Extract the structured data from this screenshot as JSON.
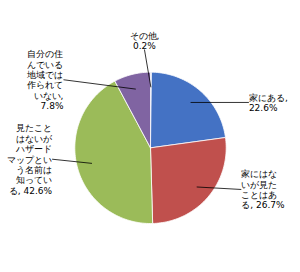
{
  "chart_data": {
    "type": "pie",
    "values": [
      0.2,
      22.6,
      26.7,
      42.6,
      7.8
    ],
    "value_labels": [
      "その他,\n0.2%",
      "家にある,\n22.6%",
      "家にはな\nいが見た\nことはあ\nる, 26.7%",
      "見たこと\nはないが\nハザード\nマップとい\nう名前は\n知ってい\nる, 42.6%",
      "自分の住\nんでいる\n地域では\n作られて\nいない,\n7.8%"
    ],
    "colors": [
      "#4472C4",
      "#4472C4",
      "#C0504D",
      "#9BBB59",
      "#8064A2"
    ],
    "data_labels": true
  }
}
